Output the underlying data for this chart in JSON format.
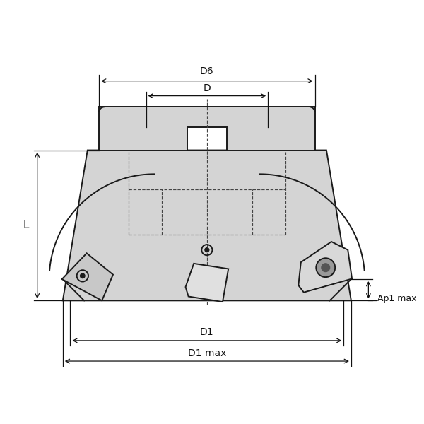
{
  "bg_color": "#ffffff",
  "body_fill": "#d4d4d4",
  "body_stroke": "#1a1a1a",
  "dashed_color": "#444444",
  "annotation_color": "#111111",
  "labels": {
    "D6": "D6",
    "D": "D",
    "D1": "D1",
    "D1max": "D1 max",
    "L": "L",
    "Ap1max": "Ap1 max"
  }
}
